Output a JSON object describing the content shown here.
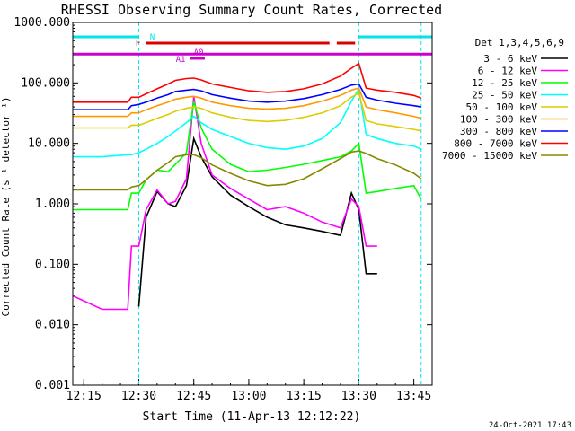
{
  "chart_data": {
    "type": "line",
    "title": "RHESSI Observing Summary Count Rates, Corrected",
    "xlabel": "Start Time (11-Apr-13 12:12:22)",
    "ylabel": "Corrected Count Rate (s⁻¹ detector⁻¹)",
    "y_scale": "log",
    "ylim": [
      0.001,
      1000
    ],
    "xlim": [
      "12:12",
      "13:50"
    ],
    "x_ticks": [
      "12:15",
      "12:30",
      "12:45",
      "13:00",
      "13:15",
      "13:30",
      "13:45"
    ],
    "y_ticks": [
      "0.001",
      "0.010",
      "0.100",
      "1.000",
      "10.000",
      "100.000",
      "1000.000"
    ],
    "footer_date": "24-Oct-2021 17:43",
    "legend": {
      "title": "Det 1,3,4,5,6,9",
      "placement": "right"
    },
    "annotations": {
      "night": {
        "label": "N",
        "color": "#00e5e5",
        "intervals": [
          [
            "12:12",
            "12:30"
          ],
          [
            "13:30",
            "13:50"
          ]
        ]
      },
      "flare": {
        "label": "F",
        "color": "#dd0000",
        "intervals": [
          [
            "12:32",
            "13:22"
          ],
          [
            "13:24",
            "13:29"
          ]
        ]
      },
      "attenuator": {
        "labels": [
          "A1",
          "A0"
        ],
        "color": "#cc00cc",
        "interval": [
          "12:44",
          "12:48"
        ]
      },
      "saa_line": {
        "color": "#cc00cc",
        "value": 300,
        "interval": [
          "12:12",
          "13:50"
        ]
      },
      "night_markers": [
        "12:30",
        "13:30",
        "13:47"
      ]
    },
    "x": [
      "12:12",
      "12:20",
      "12:27",
      "12:28",
      "12:30",
      "12:32",
      "12:35",
      "12:38",
      "12:40",
      "12:43",
      "12:45",
      "12:47",
      "12:50",
      "12:55",
      "13:00",
      "13:05",
      "13:10",
      "13:15",
      "13:20",
      "13:25",
      "13:28",
      "13:30",
      "13:32",
      "13:35",
      "13:40",
      "13:45",
      "13:47"
    ],
    "series": [
      {
        "name": "3 - 6 keV",
        "color": "#000000",
        "values": [
          null,
          null,
          null,
          null,
          0.02,
          0.6,
          1.6,
          1.0,
          0.9,
          2.0,
          12,
          6,
          2.8,
          1.4,
          0.9,
          0.6,
          0.45,
          0.4,
          0.35,
          0.3,
          1.5,
          0.8,
          0.07,
          0.07,
          null,
          null,
          null
        ]
      },
      {
        "name": "6 - 12 keV",
        "color": "#ff00ff",
        "values": [
          0.03,
          0.018,
          0.018,
          0.2,
          0.2,
          0.8,
          1.7,
          1.0,
          1.1,
          2.6,
          60,
          10,
          3.0,
          1.8,
          1.2,
          0.8,
          0.9,
          0.7,
          0.5,
          0.4,
          1.2,
          0.9,
          0.2,
          0.2,
          null,
          0.013,
          null
        ]
      },
      {
        "name": "12 - 25 keV",
        "color": "#00ff00",
        "values": [
          0.8,
          0.8,
          0.8,
          1.5,
          1.5,
          2.5,
          3.6,
          3.4,
          4.5,
          7.0,
          50,
          18,
          8,
          4.5,
          3.4,
          3.6,
          4.0,
          4.5,
          5.2,
          6.0,
          7.5,
          10,
          1.5,
          1.6,
          1.8,
          2.0,
          1.2
        ]
      },
      {
        "name": "25 - 50 keV",
        "color": "#00ffff",
        "values": [
          6,
          6,
          6.5,
          6.5,
          7,
          8,
          10,
          13,
          16,
          22,
          28,
          22,
          17,
          13,
          10,
          8.5,
          8,
          9,
          12,
          22,
          50,
          80,
          14,
          12,
          10,
          9,
          8
        ]
      },
      {
        "name": "50 - 100 keV",
        "color": "#ddcc00",
        "values": [
          18,
          18,
          18,
          20,
          20,
          22,
          26,
          30,
          34,
          38,
          40,
          38,
          32,
          27,
          24,
          23,
          24,
          27,
          32,
          42,
          58,
          68,
          24,
          21,
          19,
          17,
          16
        ]
      },
      {
        "name": "100 - 300 keV",
        "color": "#ff9900",
        "values": [
          28,
          28,
          28,
          32,
          32,
          36,
          42,
          48,
          54,
          58,
          60,
          56,
          48,
          42,
          38,
          37,
          38,
          42,
          50,
          62,
          76,
          82,
          40,
          36,
          32,
          28,
          26
        ]
      },
      {
        "name": "300 - 800 keV",
        "color": "#0000ff",
        "values": [
          36,
          36,
          36,
          42,
          44,
          48,
          56,
          64,
          72,
          76,
          78,
          74,
          64,
          56,
          50,
          48,
          50,
          55,
          64,
          78,
          92,
          96,
          58,
          52,
          46,
          42,
          40
        ]
      },
      {
        "name": "800 - 7000 keV",
        "color": "#ff0000",
        "values": [
          48,
          48,
          48,
          58,
          58,
          66,
          80,
          96,
          110,
          118,
          120,
          112,
          96,
          84,
          74,
          70,
          72,
          80,
          96,
          130,
          175,
          210,
          82,
          76,
          70,
          62,
          56
        ]
      },
      {
        "name": "7000 - 15000 keV",
        "color": "#888800",
        "values": [
          1.7,
          1.7,
          1.7,
          1.9,
          2.0,
          2.5,
          3.6,
          4.8,
          6.0,
          6.5,
          6.5,
          5.8,
          4.4,
          3.2,
          2.4,
          2.0,
          2.1,
          2.6,
          3.8,
          5.6,
          7.2,
          7.5,
          6.8,
          5.6,
          4.4,
          3.2,
          2.6
        ]
      }
    ]
  }
}
